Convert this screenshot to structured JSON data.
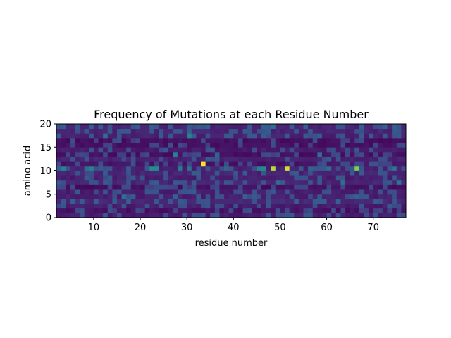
{
  "chart_data": {
    "type": "heatmap",
    "title": "Frequency of Mutations at each Residue Number",
    "xlabel": "residue number",
    "ylabel": "amino acid",
    "xlim": [
      2,
      77
    ],
    "ylim": [
      0,
      20
    ],
    "xticks": [
      10,
      20,
      30,
      40,
      50,
      60,
      70
    ],
    "yticks": [
      0,
      5,
      10,
      15,
      20
    ],
    "colormap": "viridis",
    "value_range": [
      0,
      1
    ],
    "grid": false,
    "legend": "none",
    "hotspots": [
      {
        "x": 33,
        "y": 11,
        "value": 1.0
      },
      {
        "x": 48,
        "y": 10,
        "value": 0.92
      },
      {
        "x": 51,
        "y": 10,
        "value": 0.95
      },
      {
        "x": 66,
        "y": 10,
        "value": 0.85
      },
      {
        "x": 22,
        "y": 10,
        "value": 0.62
      },
      {
        "x": 23,
        "y": 10,
        "value": 0.6
      },
      {
        "x": 46,
        "y": 10,
        "value": 0.6
      },
      {
        "x": 45,
        "y": 10,
        "value": 0.55
      },
      {
        "x": 9,
        "y": 10,
        "value": 0.55
      },
      {
        "x": 3,
        "y": 10,
        "value": 0.55
      },
      {
        "x": 30,
        "y": 17,
        "value": 0.55
      },
      {
        "x": 27,
        "y": 13,
        "value": 0.55
      },
      {
        "x": 75,
        "y": 7,
        "value": 0.5
      },
      {
        "x": 74,
        "y": 10,
        "value": 0.5
      },
      {
        "x": 30,
        "y": 10,
        "value": 0.45
      },
      {
        "x": 8,
        "y": 10,
        "value": 0.45
      },
      {
        "x": 2,
        "y": 10,
        "value": 0.4
      },
      {
        "x": 49,
        "y": 7,
        "value": 0.45
      },
      {
        "x": 63,
        "y": 7,
        "value": 0.45
      },
      {
        "x": 16,
        "y": 4,
        "value": 0.45
      },
      {
        "x": 27,
        "y": 4,
        "value": 0.4
      },
      {
        "x": 42,
        "y": 4,
        "value": 0.4
      },
      {
        "x": 66,
        "y": 4,
        "value": 0.4
      },
      {
        "x": 73,
        "y": 2,
        "value": 0.35
      },
      {
        "x": 58,
        "y": 13,
        "value": 0.45
      },
      {
        "x": 12,
        "y": 17,
        "value": 0.45
      },
      {
        "x": 48,
        "y": 19,
        "value": 0.45
      },
      {
        "x": 28,
        "y": 10,
        "value": 0.5
      },
      {
        "x": 38,
        "y": 10,
        "value": 0.4
      },
      {
        "x": 56,
        "y": 10,
        "value": 0.4
      },
      {
        "x": 60,
        "y": 10,
        "value": 0.45
      },
      {
        "x": 36,
        "y": 13,
        "value": 0.4
      }
    ]
  }
}
